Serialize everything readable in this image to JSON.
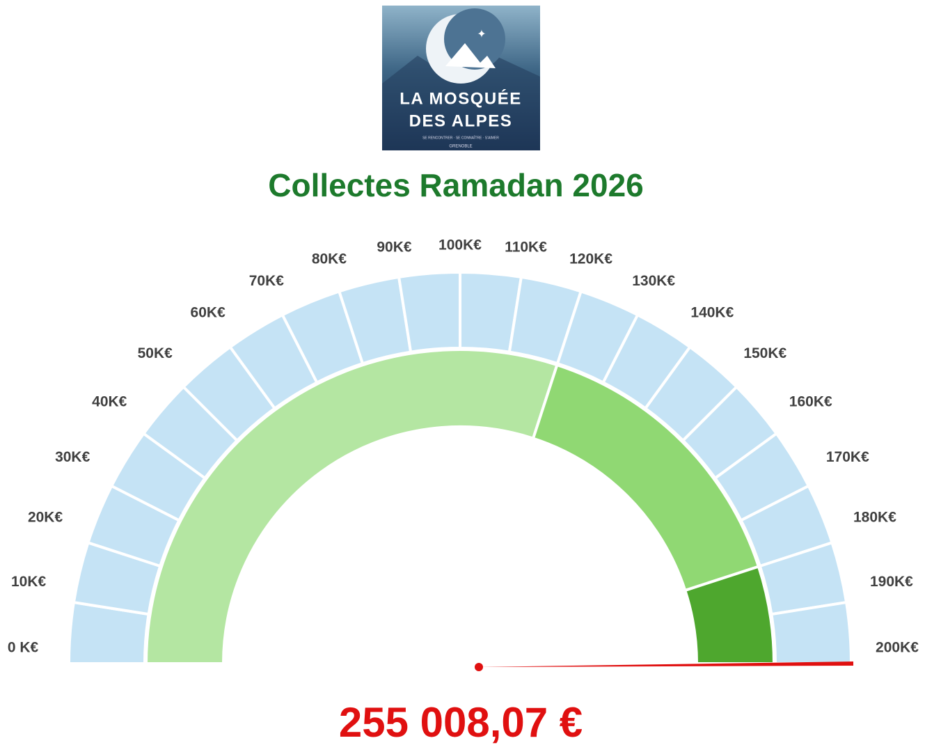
{
  "logo": {
    "line1": "LA MOSQUÉE",
    "line2": "DES ALPES",
    "motto": "SE RENCONTRER · SE CONNAÎTRE · S'AIMER",
    "city": "GRENOBLE"
  },
  "chart_data": {
    "type": "gauge",
    "title": "Collectes Ramadan 2026",
    "ylim": [
      0,
      200000
    ],
    "yticks": [
      {
        "value": 0,
        "label": "0 K€"
      },
      {
        "value": 10000,
        "label": "10K€"
      },
      {
        "value": 20000,
        "label": "20K€"
      },
      {
        "value": 30000,
        "label": "30K€"
      },
      {
        "value": 40000,
        "label": "40K€"
      },
      {
        "value": 50000,
        "label": "50K€"
      },
      {
        "value": 60000,
        "label": "60K€"
      },
      {
        "value": 70000,
        "label": "70K€"
      },
      {
        "value": 80000,
        "label": "80K€"
      },
      {
        "value": 90000,
        "label": "90K€"
      },
      {
        "value": 100000,
        "label": "100K€"
      },
      {
        "value": 110000,
        "label": "110K€"
      },
      {
        "value": 120000,
        "label": "120K€"
      },
      {
        "value": 130000,
        "label": "130K€"
      },
      {
        "value": 140000,
        "label": "140K€"
      },
      {
        "value": 150000,
        "label": "150K€"
      },
      {
        "value": 160000,
        "label": "160K€"
      },
      {
        "value": 170000,
        "label": "170K€"
      },
      {
        "value": 180000,
        "label": "180K€"
      },
      {
        "value": 190000,
        "label": "190K€"
      },
      {
        "value": 200000,
        "label": "200K€"
      }
    ],
    "scale_color": "#c5e3f5",
    "values": [
      120000,
      60000,
      20000
    ],
    "colors": [
      "#b4e6a2",
      "#90d873",
      "#4ea72e"
    ],
    "pointer": 200000,
    "pointer_color": "#e01010",
    "total": {
      "value": 255008.07,
      "label": "255 008,07 €"
    }
  }
}
